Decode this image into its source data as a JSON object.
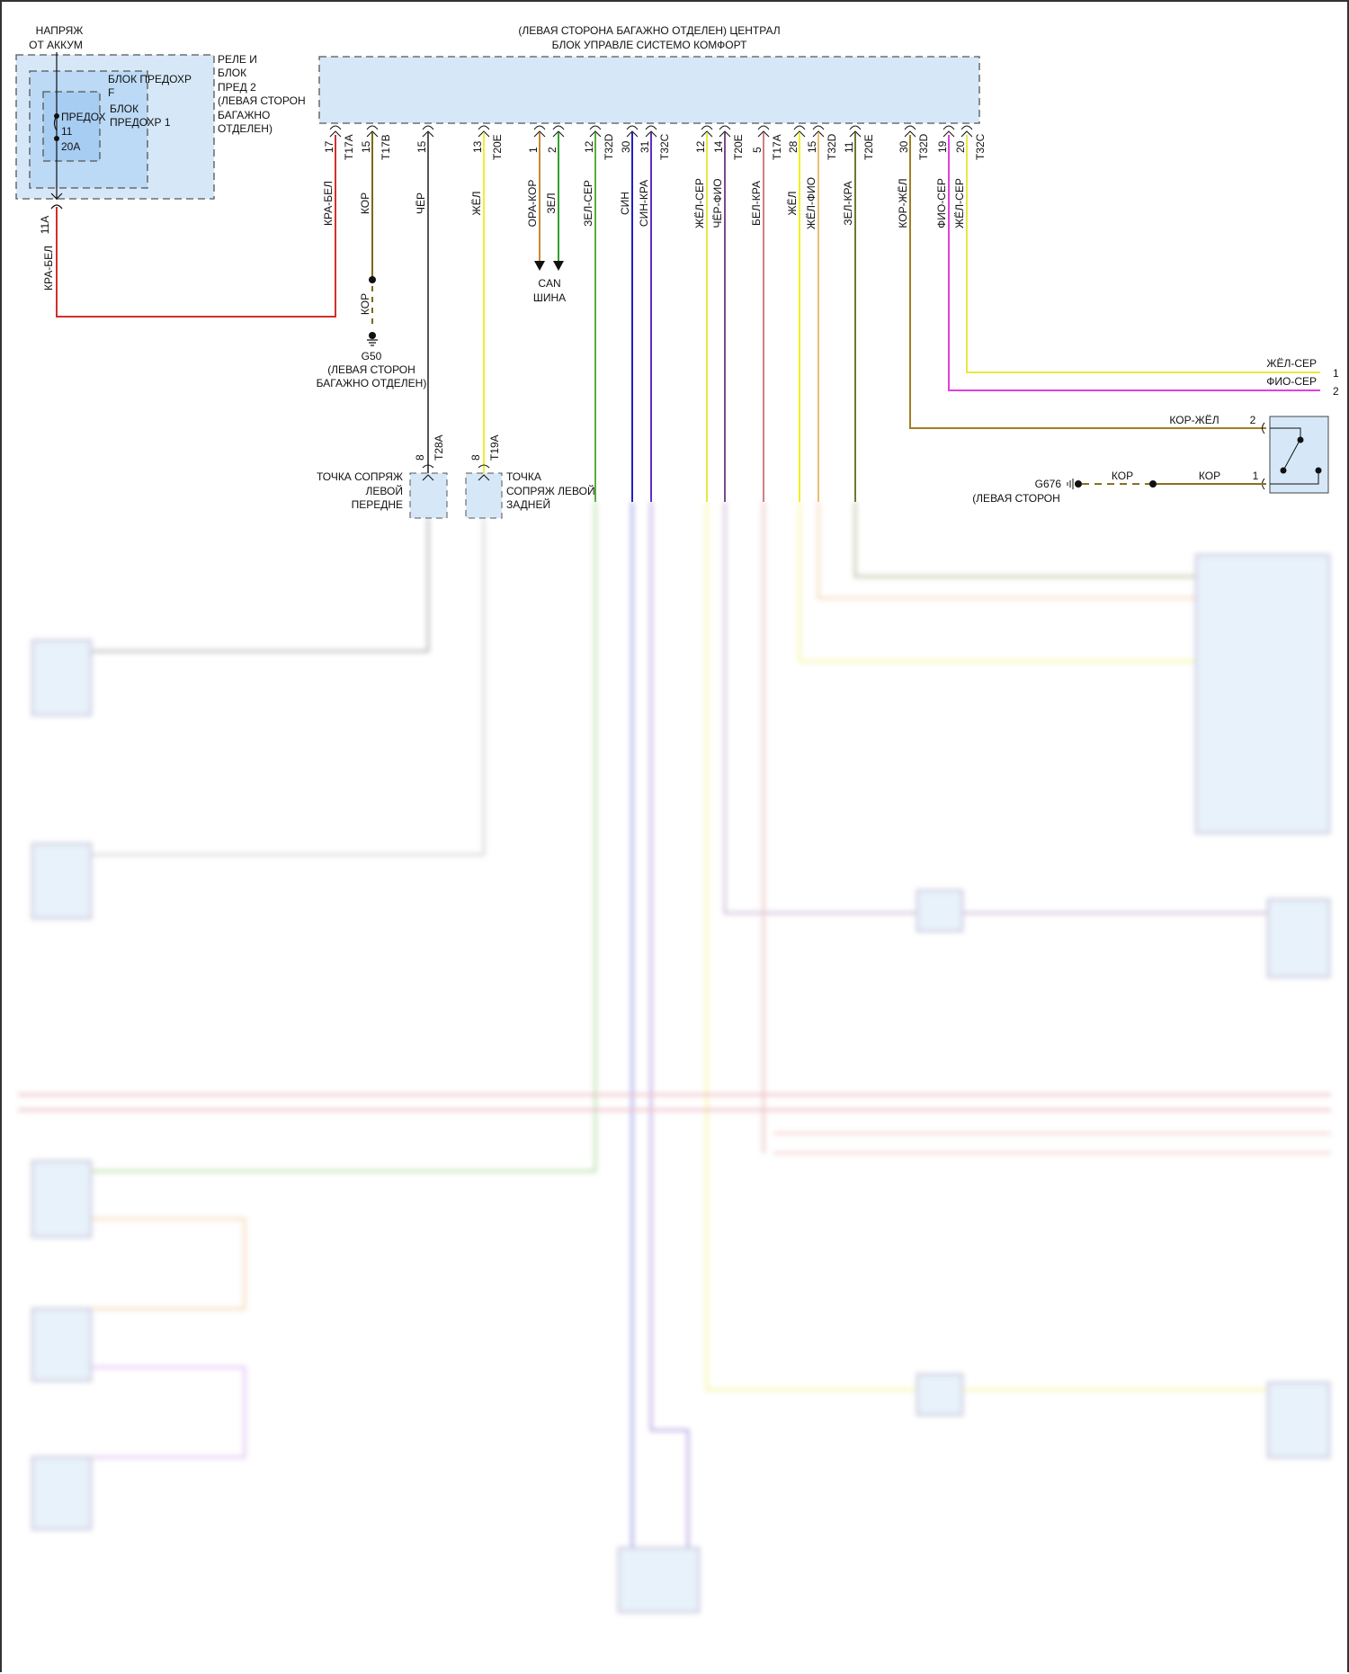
{
  "title": {
    "line1": "(ЛЕВАЯ СТОРОНА БАГАЖНО ОТДЕЛЕН) ЦЕНТРАЛ",
    "line2": "БЛОК УПРАВЛЕ СИСТЕМО КОМФОРТ"
  },
  "battery": {
    "line1": "НАПРЯЖ",
    "line2": "ОТ АККУМ"
  },
  "relay_box": {
    "lines": [
      "РЕЛЕ И",
      "БЛОК",
      "ПРЕД 2",
      "(ЛЕВАЯ СТОРОН",
      "БАГАЖНО",
      "ОТДЕЛЕН)"
    ]
  },
  "fuse_block_f": {
    "lines": [
      "БЛОК ПРЕДОХР",
      "F"
    ]
  },
  "fuse_block_1": {
    "lines": [
      "БЛОК",
      "ПРЕДОХР 1"
    ]
  },
  "fuse": {
    "lines": [
      "ПРЕДОХ",
      "11",
      "20A"
    ]
  },
  "fuse_output": {
    "pin": "11A",
    "wire": "КРА-БЕЛ",
    "color": "#d03030"
  },
  "pins": [
    {
      "num": "17",
      "conn": "T17A",
      "wire": "КРА-БЕЛ",
      "color": "#d03030"
    },
    {
      "num": "15",
      "conn": "T17B",
      "wire": "КОР",
      "color": "#7a6a10"
    },
    {
      "num": "15",
      "conn": "",
      "wire": "ЧЁР",
      "color": "#555555"
    },
    {
      "num": "13",
      "conn": "T20E",
      "wire": "ЖЁЛ",
      "color": "#f0f030"
    },
    {
      "num": "1",
      "conn": "",
      "wire": "ОРА-КОР",
      "color": "#c88a30"
    },
    {
      "num": "2",
      "conn": "",
      "wire": "ЗЕЛ",
      "color": "#30a030"
    },
    {
      "num": "12",
      "conn": "T32D",
      "wire": "ЗЕЛ-СЕР",
      "color": "#5aae3a"
    },
    {
      "num": "30",
      "conn": "",
      "wire": "СИН",
      "color": "#2020c0"
    },
    {
      "num": "31",
      "conn": "T32C",
      "wire": "СИН-КРА",
      "color": "#6030c0"
    },
    {
      "num": "12",
      "conn": "",
      "wire": "ЖЁЛ-СЕР",
      "color": "#e8e840"
    },
    {
      "num": "14",
      "conn": "T20E",
      "wire": "ЧЁР-ФИО",
      "color": "#7a4a8a"
    },
    {
      "num": "5",
      "conn": "T17A",
      "wire": "БЕЛ-КРА",
      "color": "#d08080"
    },
    {
      "num": "28",
      "conn": "",
      "wire": "ЖЁЛ",
      "color": "#f0f020"
    },
    {
      "num": "15",
      "conn": "T32D",
      "wire": "ЖЁЛ-ФИО",
      "color": "#e8c070"
    },
    {
      "num": "11",
      "conn": "T20E",
      "wire": "ЗЕЛ-КРА",
      "color": "#6a7a30"
    },
    {
      "num": "30",
      "conn": "T32D",
      "wire": "КОР-ЖЁЛ",
      "color": "#a08020"
    },
    {
      "num": "19",
      "conn": "",
      "wire": "ФИО-СЕР",
      "color": "#e040e0"
    },
    {
      "num": "20",
      "conn": "T32C",
      "wire": "ЖЁЛ-СЕР",
      "color": "#e8e840"
    }
  ],
  "ground_g50": {
    "wire": "КОР",
    "name": "G50",
    "line1": "(ЛЕВАЯ СТОРОН",
    "line2": "БАГАЖНО ОТДЕЛЕН)"
  },
  "can_bus": {
    "line1": "CAN",
    "line2": "ШИНА"
  },
  "connector_front": {
    "pin": "8",
    "conn": "T28A",
    "lines": [
      "ТОЧКА СОПРЯЖ",
      "ЛЕВОЙ",
      "ПЕРЕДНЕ"
    ]
  },
  "connector_rear": {
    "pin": "8",
    "conn": "T19A",
    "lines": [
      "ТОЧКА",
      "СОПРЯЖ ЛЕВОЙ",
      "ЗАДНЕЙ"
    ]
  },
  "outputs": [
    {
      "wire": "ЖЁЛ-СЕР",
      "num": "1"
    },
    {
      "wire": "ФИО-СЕР",
      "num": "2"
    }
  ],
  "switch": {
    "pin_top": "2",
    "wire_top": "КОР-ЖЁЛ",
    "pin_bottom": "1",
    "wire_bottom_1": "КОР",
    "wire_bottom_2": "КОР"
  },
  "ground_g676": {
    "name": "G676",
    "line1": "(ЛЕВАЯ СТОРОН"
  },
  "colors": {
    "module_fill": "#d6e8f8",
    "fuse_inner": "#a8cdf2",
    "fuse_mid": "#bcdaf5"
  }
}
